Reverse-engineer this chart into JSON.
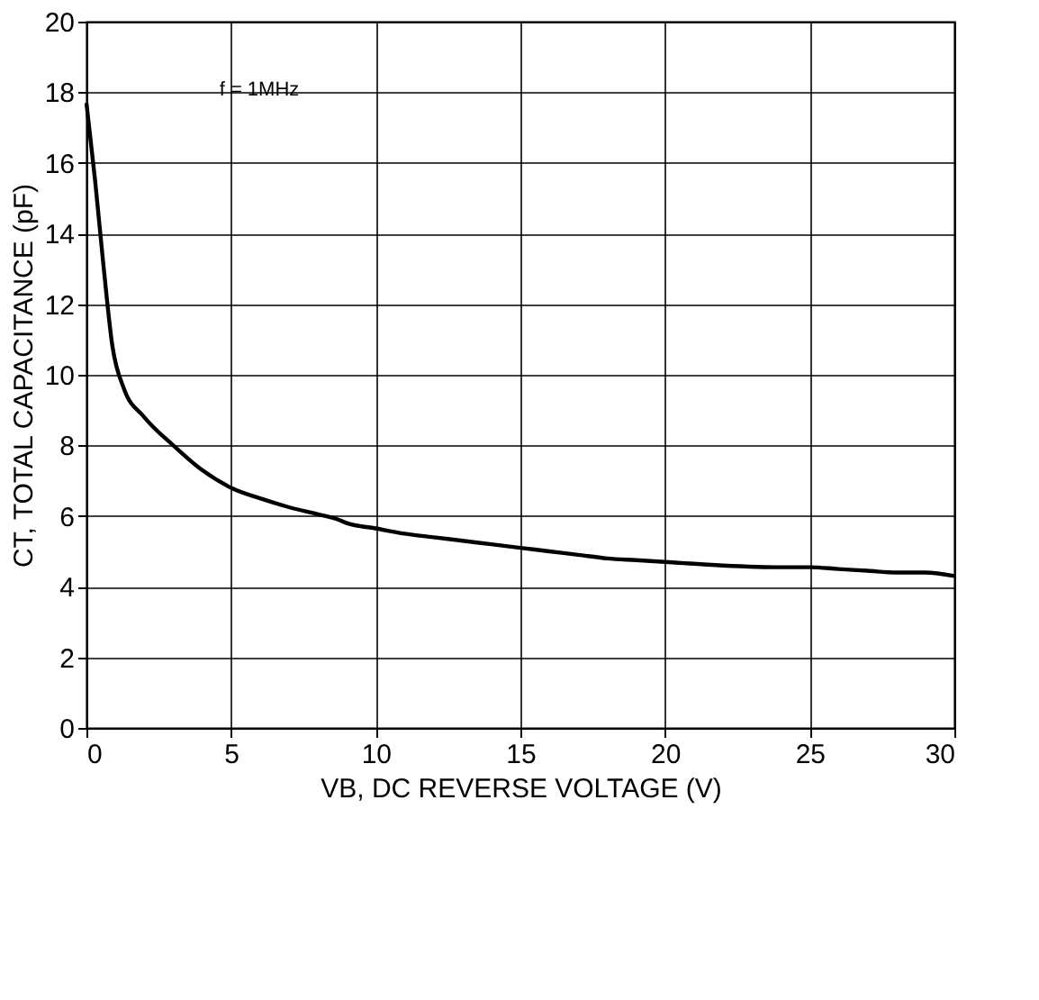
{
  "chart_data": {
    "type": "line",
    "xlabel": "VB, DC REVERSE VOLTAGE (V)",
    "ylabel": "CT, TOTAL CAPACITANCE (pF)",
    "annotations": [
      "f = 1MHz"
    ],
    "xlim": [
      0,
      30
    ],
    "xticks": [
      0,
      5,
      10,
      15,
      20,
      25,
      30
    ],
    "ylim": [
      0,
      20
    ],
    "yticks": [
      0,
      2,
      4,
      6,
      8,
      10,
      12,
      14,
      16,
      18,
      20
    ],
    "grid": true,
    "line_style": "solid",
    "x": [
      0,
      0.3,
      0.6,
      0.9,
      1.3,
      2,
      3,
      4,
      5,
      6,
      7,
      8,
      8.7,
      9,
      10,
      11,
      12,
      13,
      14,
      15,
      16,
      17,
      18,
      19,
      20,
      22,
      24,
      25,
      26,
      27,
      28,
      29,
      30
    ],
    "series": [
      {
        "color": "#000000",
        "values": [
          17.7,
          15.5,
          13,
          10.8,
          9.6,
          8.8,
          8,
          7.3,
          6.8,
          6.5,
          6.25,
          6.05,
          5.9,
          5.8,
          5.65,
          5.5,
          5.4,
          5.3,
          5.2,
          5.1,
          5.0,
          4.9,
          4.8,
          4.75,
          4.7,
          4.6,
          4.55,
          4.55,
          4.5,
          4.45,
          4.4,
          4.4,
          4.3
        ]
      }
    ]
  }
}
